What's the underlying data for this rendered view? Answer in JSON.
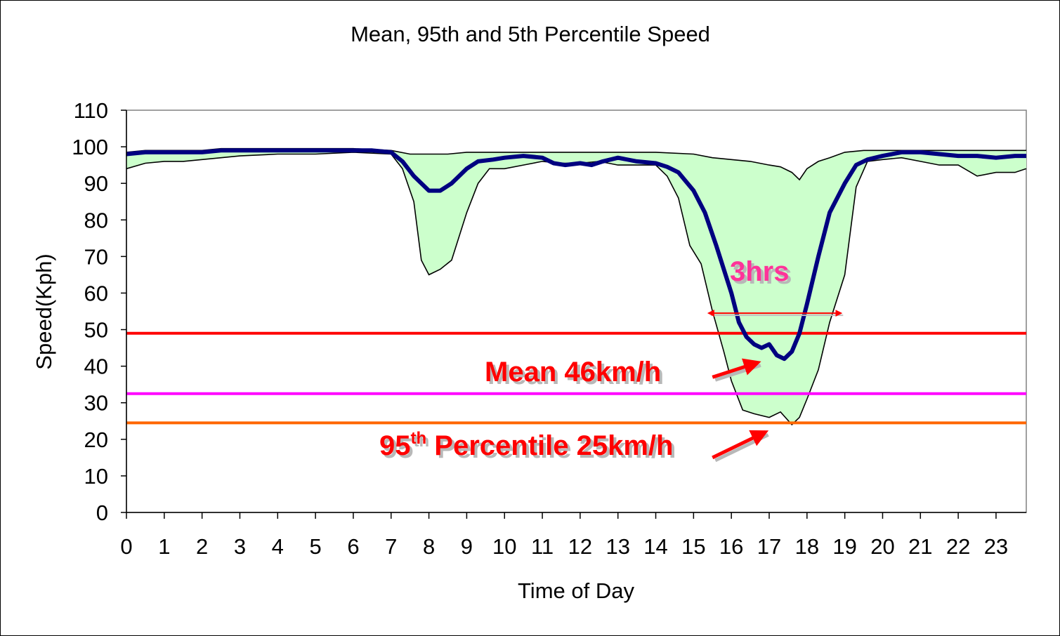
{
  "chart_data": {
    "type": "area",
    "title": "Mean, 95th and 5th Percentile Speed",
    "xlabel": "Time of Day",
    "ylabel": "Speed(Kph)",
    "xlim": [
      0,
      23.8
    ],
    "ylim": [
      0,
      110
    ],
    "x_ticks": [
      "0",
      "1",
      "2",
      "3",
      "4",
      "5",
      "6",
      "7",
      "8",
      "9",
      "10",
      "11",
      "12",
      "13",
      "14",
      "15",
      "16",
      "17",
      "18",
      "19",
      "20",
      "21",
      "22",
      "23"
    ],
    "y_ticks": [
      "0",
      "10",
      "20",
      "30",
      "40",
      "50",
      "60",
      "70",
      "80",
      "90",
      "100",
      "110"
    ],
    "colors": {
      "band_fill": "#ccffcc",
      "band_edge": "#000000",
      "mean": "#000080",
      "line_50": "#ff0000",
      "line_32": "#ff00ff",
      "line_24": "#ff6600",
      "annotation": "#ff0000",
      "hrs_label": "#ff3399"
    },
    "series": [
      {
        "values": [
          [
            0,
            98
          ],
          [
            0.5,
            98.5
          ],
          [
            1,
            98.5
          ],
          [
            1.5,
            98.5
          ],
          [
            2,
            98.5
          ],
          [
            2.5,
            99
          ],
          [
            3,
            99
          ],
          [
            4,
            99
          ],
          [
            5,
            99
          ],
          [
            6,
            99
          ],
          [
            6.5,
            99
          ],
          [
            7,
            98.5
          ],
          [
            7.3,
            96
          ],
          [
            7.6,
            92
          ],
          [
            8,
            88
          ],
          [
            8.3,
            88
          ],
          [
            8.6,
            90
          ],
          [
            9,
            94
          ],
          [
            9.3,
            96
          ],
          [
            9.7,
            96.5
          ],
          [
            10,
            97
          ],
          [
            10.5,
            97.5
          ],
          [
            11,
            97
          ],
          [
            11.3,
            95.5
          ],
          [
            11.6,
            95
          ],
          [
            12,
            95.5
          ],
          [
            12.3,
            95
          ],
          [
            12.6,
            96
          ],
          [
            13,
            97
          ],
          [
            13.5,
            96
          ],
          [
            14,
            95.5
          ],
          [
            14.3,
            94.5
          ],
          [
            14.6,
            93
          ],
          [
            15,
            88
          ],
          [
            15.3,
            82
          ],
          [
            15.6,
            73
          ],
          [
            16,
            60
          ],
          [
            16.2,
            52
          ],
          [
            16.4,
            48
          ],
          [
            16.6,
            46
          ],
          [
            16.8,
            45
          ],
          [
            17,
            46
          ],
          [
            17.2,
            43
          ],
          [
            17.4,
            42
          ],
          [
            17.6,
            44
          ],
          [
            17.8,
            49
          ],
          [
            18,
            57
          ],
          [
            18.3,
            70
          ],
          [
            18.6,
            82
          ],
          [
            19,
            90
          ],
          [
            19.3,
            95
          ],
          [
            19.6,
            96.5
          ],
          [
            20,
            97.5
          ],
          [
            20.5,
            98.5
          ],
          [
            21,
            98.5
          ],
          [
            21.5,
            98
          ],
          [
            22,
            97.5
          ],
          [
            22.5,
            97.5
          ],
          [
            23,
            97
          ],
          [
            23.5,
            97.5
          ],
          [
            23.8,
            97.5
          ]
        ]
      },
      {
        "values": [
          [
            0,
            98.5
          ],
          [
            0.5,
            99
          ],
          [
            1,
            99
          ],
          [
            2,
            99
          ],
          [
            2.5,
            99.5
          ],
          [
            3,
            99.5
          ],
          [
            4,
            99.5
          ],
          [
            5,
            99.5
          ],
          [
            6,
            99.5
          ],
          [
            7,
            99
          ],
          [
            7.5,
            98
          ],
          [
            8,
            98
          ],
          [
            8.5,
            98
          ],
          [
            9,
            98.5
          ],
          [
            9.5,
            98.5
          ],
          [
            10,
            98.5
          ],
          [
            11,
            98.5
          ],
          [
            12,
            98.5
          ],
          [
            13,
            98.5
          ],
          [
            14,
            98.5
          ],
          [
            15,
            98
          ],
          [
            15.5,
            97
          ],
          [
            16,
            96.5
          ],
          [
            16.5,
            96
          ],
          [
            17,
            95
          ],
          [
            17.3,
            94.5
          ],
          [
            17.6,
            93
          ],
          [
            17.8,
            91
          ],
          [
            18,
            94
          ],
          [
            18.3,
            96
          ],
          [
            18.6,
            97
          ],
          [
            19,
            98.5
          ],
          [
            19.5,
            99
          ],
          [
            20,
            99
          ],
          [
            21,
            99
          ],
          [
            22,
            99
          ],
          [
            23,
            99
          ],
          [
            23.8,
            99
          ]
        ]
      },
      {
        "values": [
          [
            0,
            94
          ],
          [
            0.5,
            95.5
          ],
          [
            1,
            96
          ],
          [
            1.5,
            96
          ],
          [
            2,
            96.5
          ],
          [
            2.5,
            97
          ],
          [
            3,
            97.5
          ],
          [
            4,
            98
          ],
          [
            5,
            98
          ],
          [
            6,
            98.5
          ],
          [
            7,
            98
          ],
          [
            7.3,
            94
          ],
          [
            7.6,
            85
          ],
          [
            7.8,
            69
          ],
          [
            8,
            65
          ],
          [
            8.3,
            66.5
          ],
          [
            8.6,
            69
          ],
          [
            9,
            82
          ],
          [
            9.3,
            90
          ],
          [
            9.6,
            94
          ],
          [
            10,
            94
          ],
          [
            10.5,
            95
          ],
          [
            11,
            96
          ],
          [
            11.5,
            95.5
          ],
          [
            12,
            95.5
          ],
          [
            12.5,
            96
          ],
          [
            13,
            95
          ],
          [
            14,
            95
          ],
          [
            14.3,
            92
          ],
          [
            14.6,
            86
          ],
          [
            14.9,
            73
          ],
          [
            15.2,
            68
          ],
          [
            15.5,
            55
          ],
          [
            15.8,
            44
          ],
          [
            16,
            36
          ],
          [
            16.3,
            28
          ],
          [
            16.6,
            27
          ],
          [
            17,
            26
          ],
          [
            17.3,
            27.5
          ],
          [
            17.6,
            24
          ],
          [
            17.8,
            26
          ],
          [
            18,
            31
          ],
          [
            18.3,
            39
          ],
          [
            18.6,
            52
          ],
          [
            19,
            65
          ],
          [
            19.3,
            89
          ],
          [
            19.6,
            96
          ],
          [
            20,
            96.5
          ],
          [
            20.5,
            97
          ],
          [
            21,
            96
          ],
          [
            21.5,
            95
          ],
          [
            22,
            95
          ],
          [
            22.5,
            92
          ],
          [
            23,
            93
          ],
          [
            23.5,
            93
          ],
          [
            23.8,
            94
          ]
        ]
      }
    ],
    "reference_lines": [
      {
        "y": 49
      },
      {
        "y": 32.5
      },
      {
        "y": 24.5
      }
    ],
    "annotations": {
      "hrs_label": "3hrs",
      "mean_label": "Mean 46km/h",
      "p95_label_main": "95",
      "p95_label_sup": "th",
      "p95_label_rest": " Percentile 25km/h",
      "hrs_span": [
        15.4,
        18.9
      ],
      "hrs_arrow_y": 54.5,
      "mean_arrow": {
        "from": [
          15.5,
          37
        ],
        "to": [
          16.7,
          41
        ]
      },
      "p95_arrow": {
        "from": [
          15.5,
          15
        ],
        "to": [
          16.9,
          22
        ]
      }
    }
  }
}
